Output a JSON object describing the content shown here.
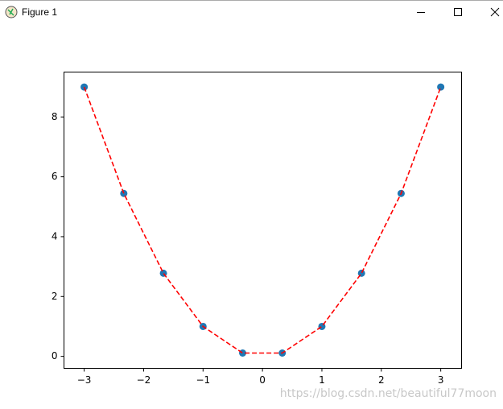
{
  "window": {
    "title": "Figure 1"
  },
  "watermark": "https://blog.csdn.net/beautiful77moon",
  "chart_data": {
    "type": "scatter",
    "x": [
      -3,
      -2.3333333333,
      -1.6666666667,
      -1,
      -0.3333333333,
      0.3333333333,
      1,
      1.6666666667,
      2.3333333333,
      3
    ],
    "values": [
      9,
      5.4444444444,
      2.7777777778,
      1,
      0.1111111111,
      0.1111111111,
      1,
      2.7777777778,
      5.4444444444,
      9
    ],
    "color": "#1f77b4",
    "line_color": "#ff0000",
    "line_style": "dashed",
    "xlim": [
      -3.34,
      3.35
    ],
    "ylim": [
      -0.4,
      9.5
    ],
    "xticks": [
      {
        "value": -3,
        "label": "−3"
      },
      {
        "value": -2,
        "label": "−2"
      },
      {
        "value": -1,
        "label": "−1"
      },
      0,
      1,
      2,
      3
    ],
    "yticks": [
      0,
      2,
      4,
      6,
      8
    ]
  }
}
